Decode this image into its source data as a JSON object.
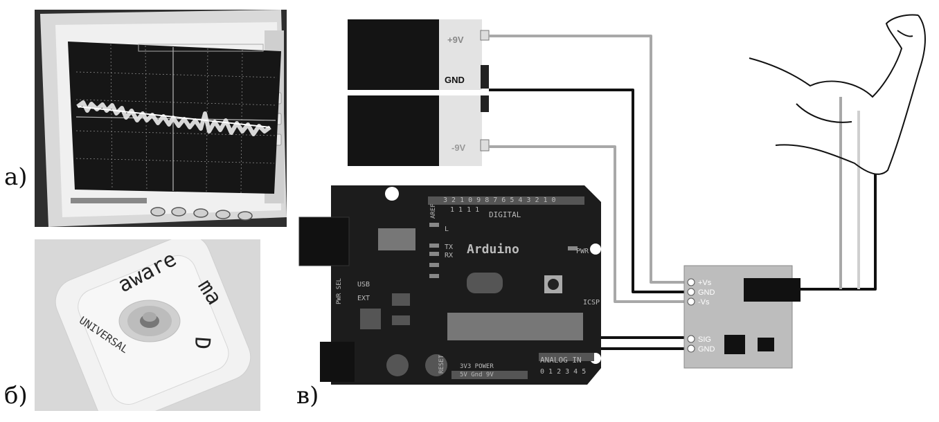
{
  "panels": {
    "a_label": "а)",
    "b_label": "б)",
    "c_label": "в)"
  },
  "electrode": {
    "brand": "aware",
    "brand_tail": "ma",
    "line2": "UNIVERSAL",
    "tail": "D"
  },
  "batteries": [
    {
      "terminal_top": "+9V",
      "terminal_bottom": "GND"
    },
    {
      "terminal_bottom": "-9V"
    }
  ],
  "arduino": {
    "name": "Arduino",
    "digital": "DIGITAL",
    "analog": "ANALOG IN",
    "pwr": "PWR",
    "icsp": "ICSP",
    "pwr_sel": "PWR SEL",
    "usb": "USB",
    "ext": "EXT",
    "aref": "AREF",
    "gnd": "GND",
    "tx": "TX",
    "rx": "RX",
    "l": "L",
    "reset": "RESET",
    "power_row": "3V3 POWER",
    "power_sub": "5V Gnd 9V",
    "analog_pins": "0 1 2 3 4 5",
    "digital_pins_top": "3 2 1 0 9 8   7 6 5 4 3 2 1 0",
    "digital_pins_sub": "1 1 1 1"
  },
  "sensor": {
    "pins": [
      "+Vs",
      "GND",
      "-Vs",
      "SIG",
      "GND"
    ]
  },
  "colors": {
    "board": "#1c1c1c",
    "sensor_board": "#bdbdbd",
    "wire_light": "#a8a8a8",
    "wire_dark": "#111111",
    "scope_bezel": "#e6e6e6"
  }
}
